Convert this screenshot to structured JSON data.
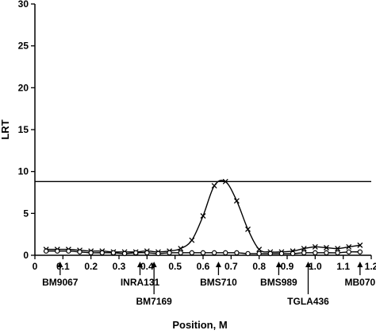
{
  "chart_data": {
    "type": "line",
    "xlabel": "Position, M",
    "ylabel": "LRT",
    "xlim": [
      0,
      1.2
    ],
    "ylim": [
      0,
      30
    ],
    "x_ticks": [
      0,
      0.1,
      0.2,
      0.3,
      0.4,
      0.5,
      0.6,
      0.7,
      0.8,
      0.9,
      1.0,
      1.1,
      1.2
    ],
    "x_tick_labels": [
      "0",
      "0.1",
      "0.2",
      "0.3",
      "0.4",
      "0.5",
      "0.6",
      "0.7",
      "0.8",
      "0.9",
      "1.0",
      "1.1",
      "1.2"
    ],
    "y_ticks": [
      0,
      5,
      10,
      15,
      20,
      25,
      30
    ],
    "y_tick_labels": [
      "0",
      "5",
      "10",
      "15",
      "20",
      "25",
      "30"
    ],
    "threshold": 8.8,
    "grid": false,
    "legend": "none",
    "series": [
      {
        "marker": "x",
        "color": "#000000",
        "x": [
          0.04,
          0.08,
          0.12,
          0.16,
          0.2,
          0.24,
          0.28,
          0.32,
          0.36,
          0.4,
          0.44,
          0.48,
          0.52,
          0.56,
          0.6,
          0.64,
          0.68,
          0.72,
          0.76,
          0.8,
          0.84,
          0.88,
          0.92,
          0.96,
          1.0,
          1.04,
          1.08,
          1.12,
          1.16
        ],
        "y": [
          0.7,
          0.7,
          0.7,
          0.6,
          0.5,
          0.5,
          0.4,
          0.4,
          0.4,
          0.5,
          0.4,
          0.5,
          0.8,
          1.8,
          4.7,
          8.3,
          8.8,
          6.5,
          3.1,
          0.7,
          0.4,
          0.4,
          0.5,
          0.8,
          1.0,
          0.9,
          0.8,
          1.0,
          1.2
        ]
      },
      {
        "marker": "o",
        "color": "#000000",
        "x": [
          0.04,
          0.08,
          0.12,
          0.16,
          0.2,
          0.24,
          0.28,
          0.32,
          0.36,
          0.4,
          0.44,
          0.48,
          0.52,
          0.56,
          0.6,
          0.64,
          0.68,
          0.72,
          0.76,
          0.8,
          0.84,
          0.88,
          0.92,
          0.96,
          1.0,
          1.04,
          1.08,
          1.12,
          1.16
        ],
        "y": [
          0.5,
          0.5,
          0.5,
          0.4,
          0.3,
          0.3,
          0.3,
          0.2,
          0.3,
          0.3,
          0.2,
          0.3,
          0.3,
          0.3,
          0.3,
          0.3,
          0.3,
          0.3,
          0.2,
          0.2,
          0.2,
          0.2,
          0.2,
          0.3,
          0.3,
          0.3,
          0.3,
          0.4,
          0.4
        ]
      }
    ],
    "markers": [
      {
        "label": "BM9067",
        "x": 0.09
      },
      {
        "label": "INRA131",
        "x": 0.375
      },
      {
        "label": "BM7169",
        "x": 0.425
      },
      {
        "label": "BMS710",
        "x": 0.655
      },
      {
        "label": "BMS989",
        "x": 0.87
      },
      {
        "label": "TGLA436",
        "x": 0.975
      },
      {
        "label": "MB070",
        "x": 1.16
      }
    ]
  }
}
